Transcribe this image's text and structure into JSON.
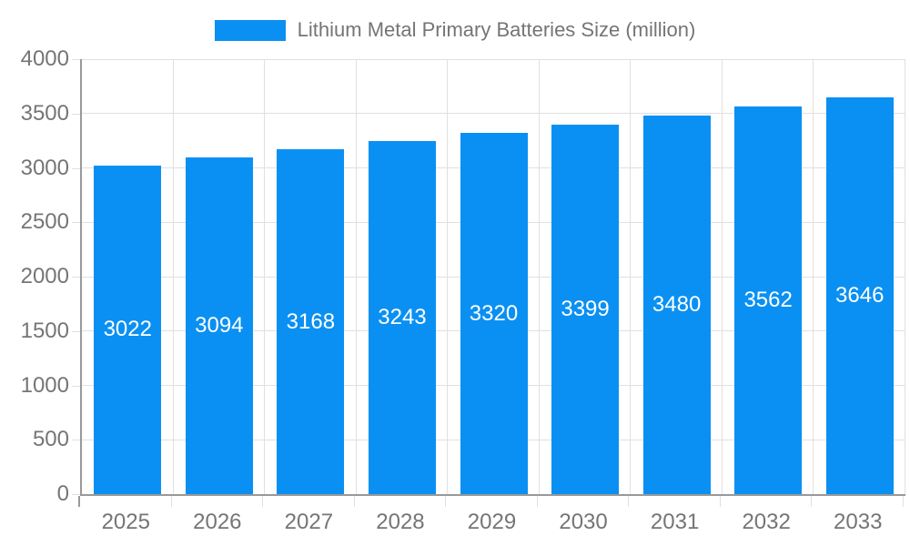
{
  "colors": {
    "bar": "#0a90f2",
    "bar_label_text": "#ffffff",
    "axis_text": "#757575",
    "grid_line": "#e0e0e0",
    "axis_line": "#999999",
    "background": "#ffffff"
  },
  "legend": {
    "label": "Lithium Metal Primary Batteries Size (million)"
  },
  "chart_data": {
    "type": "bar",
    "title": "Lithium Metal Primary Batteries Size (million)",
    "categories": [
      "2025",
      "2026",
      "2027",
      "2028",
      "2029",
      "2030",
      "2031",
      "2032",
      "2033"
    ],
    "values": [
      3022,
      3094,
      3168,
      3243,
      3320,
      3399,
      3480,
      3562,
      3646
    ],
    "bar_labels": [
      3022,
      3094,
      3168,
      3243,
      3320,
      3399,
      3480,
      3562,
      3646
    ],
    "xlabel": "",
    "ylabel": "",
    "ylim": [
      0,
      4000
    ],
    "yticks": [
      0,
      500,
      1000,
      1500,
      2000,
      2500,
      3000,
      3500,
      4000
    ],
    "grid": true,
    "legend_position": "top",
    "bar_label_position": "middle"
  }
}
